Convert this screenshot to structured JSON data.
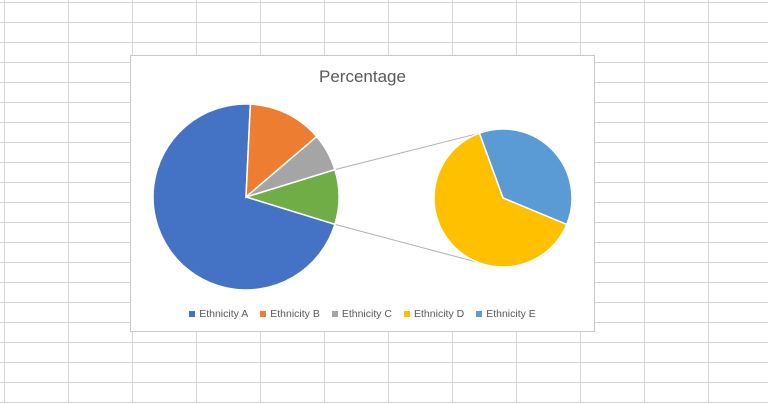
{
  "chart_data": {
    "type": "pie",
    "subtype": "pie-of-pie",
    "title": "Percentage",
    "legend_position": "bottom",
    "categories": [
      "Ethnicity A",
      "Ethnicity B",
      "Ethnicity C",
      "Ethnicity D",
      "Ethnicity E"
    ],
    "values": [
      71,
      13,
      6.5,
      6,
      3.5
    ],
    "colors": [
      "#4472C4",
      "#ED7D31",
      "#A5A5A5",
      "#FFC000",
      "#5B9BD5"
    ],
    "split": {
      "main_pie": [
        "Ethnicity A",
        "Ethnicity B",
        "Ethnicity C"
      ],
      "secondary_pie": [
        "Ethnicity D",
        "Ethnicity E"
      ],
      "other_color": "#70AD47"
    }
  }
}
